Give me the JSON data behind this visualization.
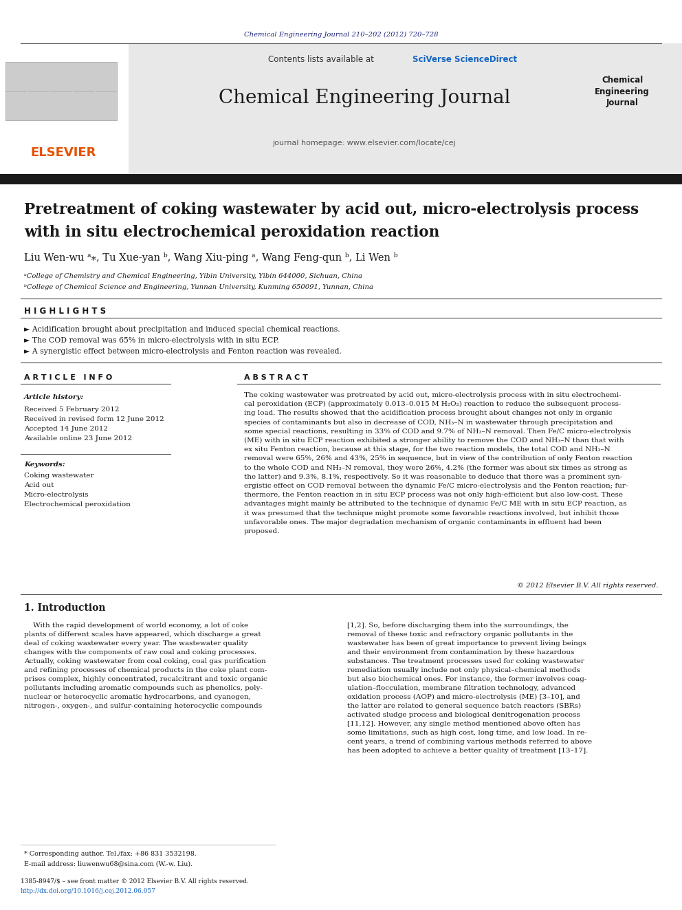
{
  "bg_color": "#ffffff",
  "top_citation": "Chemical Engineering Journal 210–202 (2012) 720–728",
  "top_citation_color": "#1a237e",
  "header_bg": "#e8e8e8",
  "sciverse_color": "#1565c0",
  "journal_title": "Chemical Engineering Journal",
  "journal_home": "journal homepage: www.elsevier.com/locate/cej",
  "journal_right": "Chemical\nEngineering\nJournal",
  "elsevier_color": "#e65100",
  "article_title_line1": "Pretreatment of coking wastewater by acid out, micro-electrolysis process",
  "article_title_line2": "with in situ electrochemical peroxidation reaction",
  "authors": "Liu Wen-wu ᵃ⁎, Tu Xue-yan ᵇ, Wang Xiu-ping ᵃ, Wang Feng-qun ᵇ, Li Wen ᵇ",
  "affil1": "ᵃCollege of Chemistry and Chemical Engineering, Yibin University, Yibin 644000, Sichuan, China",
  "affil2": "ᵇCollege of Chemical Science and Engineering, Yunnan University, Kunming 650091, Yunnan, China",
  "highlights_title": "H I G H L I G H T S",
  "highlight1": "► Acidification brought about precipitation and induced special chemical reactions.",
  "highlight2": "► The COD removal was 65% in micro-electrolysis with in situ ECP.",
  "highlight3": "► A synergistic effect between micro-electrolysis and Fenton reaction was revealed.",
  "article_info_title": "A R T I C L E   I N F O",
  "abstract_title": "A B S T R A C T",
  "article_history_label": "Article history:",
  "received1": "Received 5 February 2012",
  "received2": "Received in revised form 12 June 2012",
  "accepted": "Accepted 14 June 2012",
  "available": "Available online 23 June 2012",
  "keywords_label": "Keywords:",
  "kw1": "Coking wastewater",
  "kw2": "Acid out",
  "kw3": "Micro-electrolysis",
  "kw4": "Electrochemical peroxidation",
  "abstract_lines": [
    "The coking wastewater was pretreated by acid out, micro-electrolysis process with in situ electrochemi-",
    "cal peroxidation (ECP) (approximately 0.013–0.015 M H₂O₂) reaction to reduce the subsequent process-",
    "ing load. The results showed that the acidification process brought about changes not only in organic",
    "species of contaminants but also in decrease of COD, NH₃–N in wastewater through precipitation and",
    "some special reactions, resulting in 33% of COD and 9.7% of NH₃–N removal. Then Fe/C micro-electrolysis",
    "(ME) with in situ ECP reaction exhibited a stronger ability to remove the COD and NH₃–N than that with",
    "ex situ Fenton reaction, because at this stage, for the two reaction models, the total COD and NH₃–N",
    "removal were 65%, 26% and 43%, 25% in sequence, but in view of the contribution of only Fenton reaction",
    "to the whole COD and NH₃–N removal, they were 26%, 4.2% (the former was about six times as strong as",
    "the latter) and 9.3%, 8.1%, respectively. So it was reasonable to deduce that there was a prominent syn-",
    "ergistic effect on COD removal between the dynamic Fe/C micro-electrolysis and the Fenton reaction; fur-",
    "thermore, the Fenton reaction in in situ ECP process was not only high-efficient but also low-cost. These",
    "advantages might mainly be attributed to the technique of dynamic Fe/C ME with in situ ECP reaction, as",
    "it was presumed that the technique might promote some favorable reactions involved, but inhibit those",
    "unfavorable ones. The major degradation mechanism of organic contaminants in effluent had been",
    "proposed."
  ],
  "copyright": "© 2012 Elsevier B.V. All rights reserved.",
  "intro_title": "1. Introduction",
  "intro_col1_lines": [
    "    With the rapid development of world economy, a lot of coke",
    "plants of different scales have appeared, which discharge a great",
    "deal of coking wastewater every year. The wastewater quality",
    "changes with the components of raw coal and coking processes.",
    "Actually, coking wastewater from coal coking, coal gas purification",
    "and refining processes of chemical products in the coke plant com-",
    "prises complex, highly concentrated, recalcitrant and toxic organic",
    "pollutants including aromatic compounds such as phenolics, poly-",
    "nuclear or heterocyclic aromatic hydrocarbons, and cyanogen,",
    "nitrogen-, oxygen-, and sulfur-containing heterocyclic compounds"
  ],
  "intro_col2_lines": [
    "[1,2]. So, before discharging them into the surroundings, the",
    "removal of these toxic and refractory organic pollutants in the",
    "wastewater has been of great importance to prevent living beings",
    "and their environment from contamination by these hazardous",
    "substances. The treatment processes used for coking wastewater",
    "remediation usually include not only physical–chemical methods",
    "but also biochemical ones. For instance, the former involves coag-",
    "ulation–flocculation, membrane filtration technology, advanced",
    "oxidation process (AOP) and micro-electrolysis (ME) [3–10], and",
    "the latter are related to general sequence batch reactors (SBRs)",
    "activated sludge process and biological denitrogenation process",
    "[11,12]. However, any single method mentioned above often has",
    "some limitations, such as high cost, long time, and low load. In re-",
    "cent years, a trend of combining various methods referred to above",
    "has been adopted to achieve a better quality of treatment [13–17]."
  ],
  "footnote_star": "* Corresponding author. Tel./fax: +86 831 3532198.",
  "footnote_email": "E-mail address: liuwenwu68@sina.com (W.-w. Liu).",
  "footer_issn": "1385-8947/$ – see front matter © 2012 Elsevier B.V. All rights reserved.",
  "footer_doi": "http://dx.doi.org/10.1016/j.cej.2012.06.057"
}
